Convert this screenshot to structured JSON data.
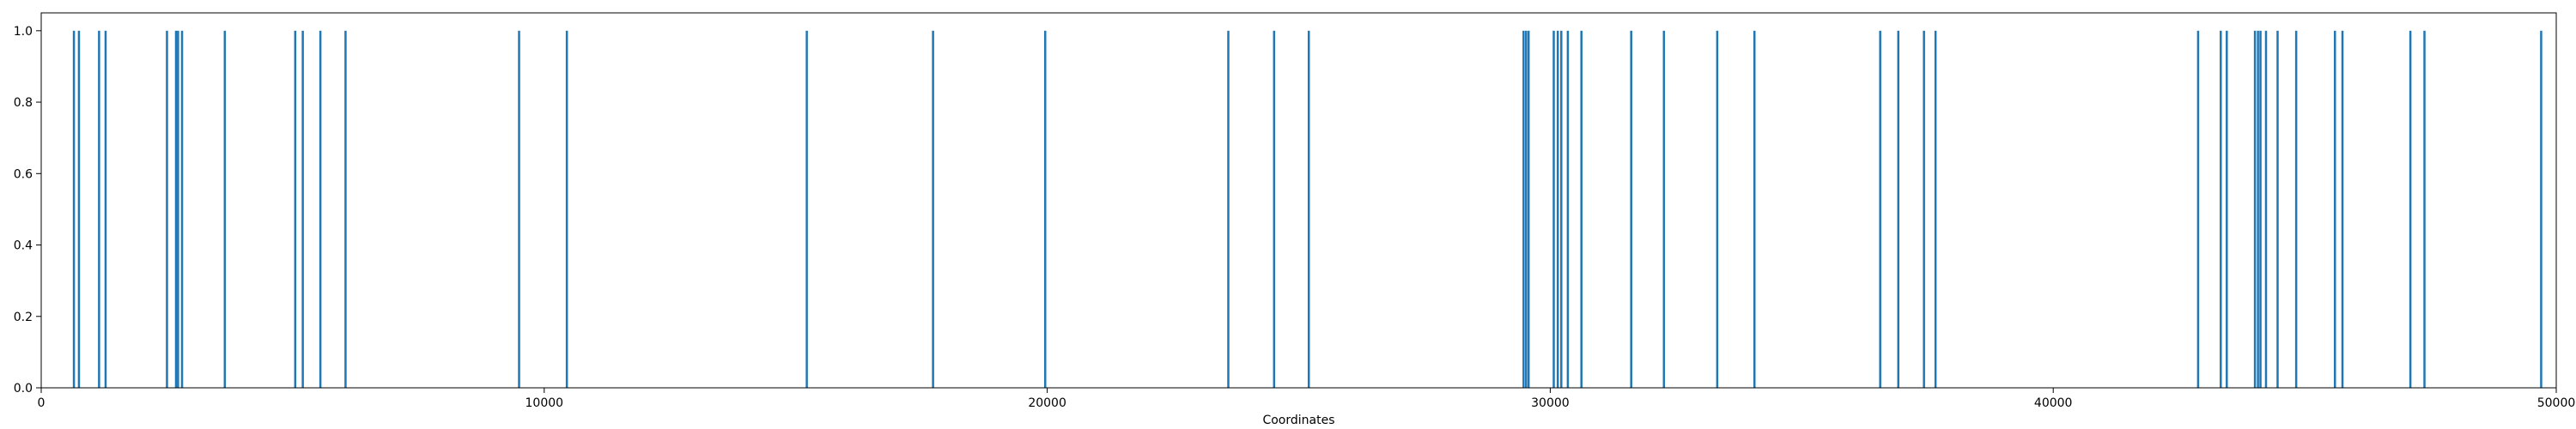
{
  "chart_data": {
    "type": "bar",
    "title": "",
    "xlabel": "Coordinates",
    "ylabel": "",
    "xlim": [
      0,
      50000
    ],
    "ylim": [
      0.0,
      1.05
    ],
    "x_ticks": [
      0,
      10000,
      20000,
      30000,
      40000,
      50000
    ],
    "y_ticks": [
      0.0,
      0.2,
      0.4,
      0.6,
      0.8,
      1.0
    ],
    "x_tick_labels": [
      "0",
      "10000",
      "20000",
      "30000",
      "40000",
      "50000"
    ],
    "y_tick_labels": [
      "0.0",
      "0.2",
      "0.4",
      "0.6",
      "0.8",
      "1.0"
    ],
    "grid": false,
    "legend": "none",
    "color": "#1f77b4",
    "series": [
      {
        "values_x": [
          650,
          750,
          1150,
          1280,
          2500,
          2680,
          2720,
          2800,
          3650,
          5050,
          5200,
          5550,
          6050,
          9500,
          10450,
          15220,
          17730,
          19960,
          23600,
          24510,
          25200,
          29470,
          29520,
          29570,
          30070,
          30150,
          30220,
          30350,
          30620,
          31610,
          32260,
          33320,
          34060,
          36560,
          36920,
          37430,
          37660,
          42880,
          43330,
          43450,
          44010,
          44070,
          44120,
          44230,
          44460,
          44830,
          45600,
          45750,
          47100,
          47380,
          49700
        ],
        "values_y": [
          1,
          1,
          1,
          1,
          1,
          1,
          1,
          1,
          1,
          1,
          1,
          1,
          1,
          1,
          1,
          1,
          1,
          1,
          1,
          1,
          1,
          1,
          1,
          1,
          1,
          1,
          1,
          1,
          1,
          1,
          1,
          1,
          1,
          1,
          1,
          1,
          1,
          1,
          1,
          1,
          1,
          1,
          1,
          1,
          1,
          1,
          1,
          1,
          1,
          1,
          1
        ]
      }
    ]
  }
}
